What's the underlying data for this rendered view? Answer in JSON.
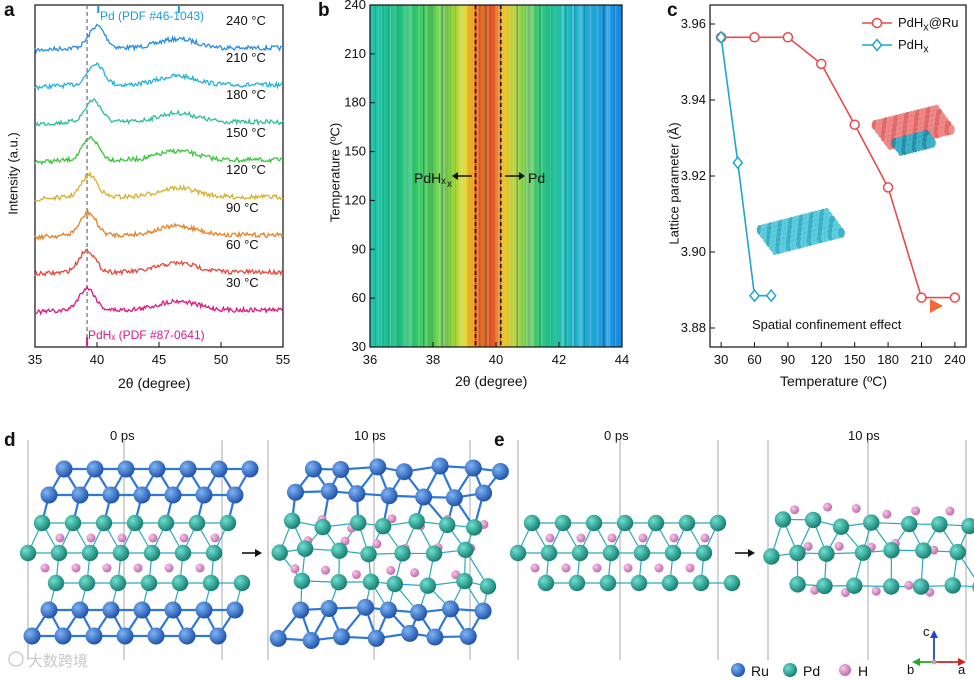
{
  "figure": {
    "panel_labels": [
      "a",
      "b",
      "c",
      "d",
      "e"
    ],
    "watermark": "大数跨境"
  },
  "panel_a": {
    "ylabel": "Intensity (a.u.)",
    "xlabel": "2θ (degree)",
    "top_ref_label": "Pd (PDF #46-1043)",
    "bottom_ref_label": "PdHₓ (PDF #87-0641)",
    "ref_colors": {
      "pd": "#1a9ae0",
      "pdh": "#e0198a"
    },
    "trace_labels": [
      "240 °C",
      "210 °C",
      "180 °C",
      "150 °C",
      "120 °C",
      "90 °C",
      "60 °C",
      "30 °C"
    ],
    "trace_colors": [
      "#2a8de0",
      "#27b2d6",
      "#2bbf9a",
      "#3cc43c",
      "#d8b02e",
      "#e8822a",
      "#e8463a",
      "#e0197e"
    ]
  },
  "panel_b": {
    "ylabel": "Temperature (ºC)",
    "xlabel": "2θ (degree)",
    "ann_left": "PdHₓ",
    "ann_right": "Pd"
  },
  "panel_c": {
    "ylabel": "Lattice parameter (Å)",
    "xlabel": "Temperature (ºC)",
    "annotation": "Spatial confinement effect"
  },
  "panel_d": {
    "time_labels": [
      "0 ps",
      "10 ps"
    ]
  },
  "panel_e": {
    "time_labels": [
      "0 ps",
      "10 ps"
    ]
  },
  "legend": {
    "atoms": [
      {
        "label": "Ru",
        "color": "#2468c8"
      },
      {
        "label": "Pd",
        "color": "#1ea393"
      },
      {
        "label": "H",
        "color": "#d98bc6"
      }
    ],
    "axes_labels": [
      "c",
      "b",
      "a"
    ]
  },
  "chart_data": [
    {
      "type": "line",
      "panel": "a",
      "xlabel": "2θ (degree)",
      "ylabel": "Intensity (a.u.)",
      "xlim": [
        35,
        55
      ],
      "x_ticks": [
        35,
        40,
        45,
        50,
        55
      ],
      "ref_lines": {
        "PdHx": 39.2,
        "Pd": [
          40.1,
          46.6
        ]
      },
      "series": [
        {
          "name": "240 °C",
          "peak": 40.0
        },
        {
          "name": "210 °C",
          "peak": 39.9
        },
        {
          "name": "180 °C",
          "peak": 39.7
        },
        {
          "name": "150 °C",
          "peak": 39.5
        },
        {
          "name": "120 °C",
          "peak": 39.4
        },
        {
          "name": "90 °C",
          "peak": 39.3
        },
        {
          "name": "60 °C",
          "peak": 39.2
        },
        {
          "name": "30 °C",
          "peak": 39.2
        }
      ]
    },
    {
      "type": "heatmap",
      "panel": "b",
      "xlabel": "2θ (degree)",
      "ylabel": "Temperature (ºC)",
      "xlim": [
        36,
        44
      ],
      "ylim": [
        30,
        240
      ],
      "x_ticks": [
        36,
        38,
        40,
        42,
        44
      ],
      "y_ticks": [
        30,
        60,
        90,
        120,
        150,
        180,
        210,
        240
      ],
      "dashed_lines_x": [
        39.35,
        40.15
      ]
    },
    {
      "type": "line",
      "panel": "c",
      "xlabel": "Temperature (ºC)",
      "ylabel": "Lattice parameter (Å)",
      "xlim": [
        20,
        250
      ],
      "ylim": [
        3.875,
        3.965
      ],
      "x_ticks": [
        30,
        60,
        90,
        120,
        150,
        180,
        210,
        240
      ],
      "y_ticks": [
        3.88,
        3.9,
        3.92,
        3.94,
        3.96
      ],
      "series": [
        {
          "name": "PdHx@Ru",
          "color": "#e84a4a",
          "marker": "circle",
          "x": [
            30,
            60,
            90,
            120,
            150,
            180,
            210,
            240
          ],
          "y": [
            3.9565,
            3.9565,
            3.9565,
            3.9495,
            3.9335,
            3.917,
            3.888,
            3.888
          ]
        },
        {
          "name": "PdHx",
          "color": "#1aa8c8",
          "marker": "diamond",
          "x": [
            30,
            45,
            60,
            75
          ],
          "y": [
            3.9565,
            3.9235,
            3.8885,
            3.8885
          ]
        }
      ]
    }
  ]
}
